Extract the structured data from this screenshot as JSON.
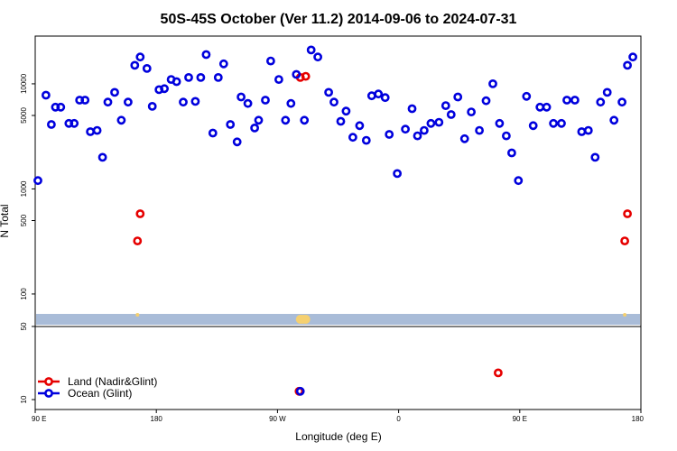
{
  "chart_data": {
    "type": "scatter",
    "title": "50S-45S October (Ver 11.2)   2014-09-06 to 2024-07-31",
    "xlabel": "Longitude (deg E)",
    "ylabel": "N Total",
    "x_ticks": [
      {
        "value": 90,
        "label": "90 E"
      },
      {
        "value": 180,
        "label": "180"
      },
      {
        "value": 270,
        "label": "90 W"
      },
      {
        "value": 360,
        "label": "0"
      },
      {
        "value": 450,
        "label": "90 E"
      },
      {
        "value": 540,
        "label": "180"
      }
    ],
    "xlim": [
      90,
      540
    ],
    "upper_y_ticks": [
      {
        "value": 100,
        "label": "100"
      },
      {
        "value": 500,
        "label": "500"
      },
      {
        "value": 1000,
        "label": "1000"
      },
      {
        "value": 5000,
        "label": "5000"
      },
      {
        "value": 10000,
        "label": "10000"
      }
    ],
    "lower_y_ticks": [
      {
        "value": 10,
        "label": "10"
      },
      {
        "value": 50,
        "label": "50"
      }
    ],
    "ylim_upper": [
      50,
      30000
    ],
    "ylim_lower": [
      8,
      50
    ],
    "series": [
      {
        "name": "Land (Nadir&Glint)",
        "color": "#e60000",
        "points": [
          [
            166,
            320
          ],
          [
            168,
            580
          ],
          [
            287,
            11500
          ],
          [
            291,
            11800
          ],
          [
            286,
            12
          ],
          [
            434,
            18
          ],
          [
            528,
            320
          ],
          [
            530,
            580
          ]
        ]
      },
      {
        "name": "Ocean (Glint)",
        "color": "#0000dd",
        "points": [
          [
            92,
            1200
          ],
          [
            98,
            7800
          ],
          [
            102,
            4100
          ],
          [
            105,
            6000
          ],
          [
            109,
            6000
          ],
          [
            115,
            4200
          ],
          [
            119,
            4200
          ],
          [
            123,
            7000
          ],
          [
            127,
            7000
          ],
          [
            131,
            3500
          ],
          [
            136,
            3600
          ],
          [
            140,
            2000
          ],
          [
            144,
            6700
          ],
          [
            149,
            8300
          ],
          [
            154,
            4500
          ],
          [
            159,
            6700
          ],
          [
            164,
            15000
          ],
          [
            168,
            18000
          ],
          [
            173,
            14000
          ],
          [
            177,
            6100
          ],
          [
            182,
            8800
          ],
          [
            186,
            9000
          ],
          [
            191,
            11000
          ],
          [
            195,
            10500
          ],
          [
            200,
            6700
          ],
          [
            204,
            11500
          ],
          [
            209,
            6800
          ],
          [
            213,
            11500
          ],
          [
            217,
            19000
          ],
          [
            222,
            3400
          ],
          [
            226,
            11500
          ],
          [
            230,
            15500
          ],
          [
            235,
            4100
          ],
          [
            240,
            2800
          ],
          [
            243,
            7500
          ],
          [
            248,
            6500
          ],
          [
            253,
            3800
          ],
          [
            256,
            4500
          ],
          [
            261,
            7000
          ],
          [
            265,
            16500
          ],
          [
            271,
            11000
          ],
          [
            276,
            4500
          ],
          [
            280,
            6500
          ],
          [
            284,
            12300
          ],
          [
            287,
            12
          ],
          [
            290,
            4500
          ],
          [
            295,
            21000
          ],
          [
            300,
            18000
          ],
          [
            308,
            8300
          ],
          [
            312,
            6700
          ],
          [
            317,
            4400
          ],
          [
            321,
            5500
          ],
          [
            326,
            3100
          ],
          [
            331,
            4000
          ],
          [
            336,
            2900
          ],
          [
            340,
            7700
          ],
          [
            345,
            8000
          ],
          [
            350,
            7400
          ],
          [
            353,
            3300
          ],
          [
            359,
            1400
          ],
          [
            365,
            3700
          ],
          [
            370,
            5800
          ],
          [
            374,
            3200
          ],
          [
            379,
            3600
          ],
          [
            384,
            4200
          ],
          [
            390,
            4300
          ],
          [
            395,
            6200
          ],
          [
            399,
            5100
          ],
          [
            404,
            7500
          ],
          [
            409,
            3000
          ],
          [
            414,
            5400
          ],
          [
            420,
            3600
          ],
          [
            425,
            6900
          ],
          [
            430,
            10000
          ],
          [
            435,
            4200
          ],
          [
            440,
            3200
          ],
          [
            444,
            2200
          ],
          [
            449,
            1200
          ],
          [
            455,
            7600
          ],
          [
            460,
            4000
          ],
          [
            465,
            6000
          ],
          [
            470,
            6000
          ],
          [
            475,
            4200
          ],
          [
            481,
            4200
          ],
          [
            485,
            7000
          ],
          [
            491,
            7000
          ],
          [
            496,
            3500
          ],
          [
            501,
            3600
          ],
          [
            506,
            2000
          ],
          [
            510,
            6700
          ],
          [
            515,
            8300
          ],
          [
            520,
            4500
          ],
          [
            526,
            6700
          ],
          [
            530,
            15000
          ],
          [
            534,
            18000
          ]
        ]
      }
    ],
    "legend": {
      "placement": "bottom-left",
      "entries": [
        "Land (Nadir&Glint)",
        "Ocean (Glint)"
      ]
    },
    "yellow_markers_x": [
      166,
      287,
      289,
      291,
      528
    ],
    "colors": {
      "band": "#a9bcd8",
      "marker_yellow": "#f5d070",
      "land": "#e60000",
      "ocean": "#0000dd"
    }
  }
}
